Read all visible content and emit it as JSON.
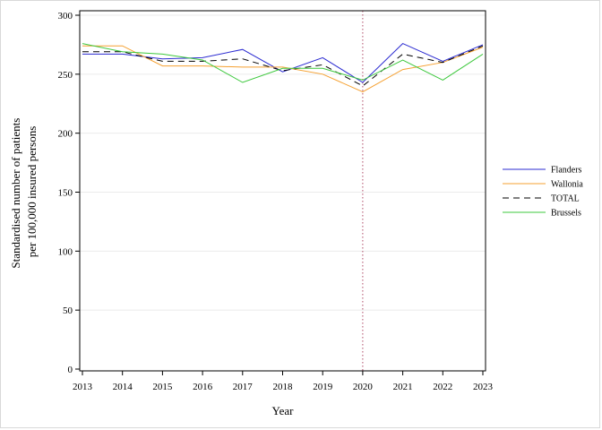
{
  "chart_data": {
    "type": "line",
    "xlabel": "Year",
    "ylabel_lines": [
      "Standardised number of patients",
      "per 100,000 insured persons"
    ],
    "x": [
      2013,
      2014,
      2015,
      2016,
      2017,
      2018,
      2019,
      2020,
      2021,
      2022,
      2023
    ],
    "ylim": [
      0,
      300
    ],
    "yticks": [
      0,
      50,
      100,
      150,
      200,
      250,
      300
    ],
    "grid": "horizontal",
    "reference_line_x": 2020,
    "legend_position": "right",
    "series": [
      {
        "name": "Flanders",
        "color": "#2b2bd1",
        "dash": "solid",
        "values": [
          267,
          267,
          263,
          264,
          271,
          252,
          264,
          243,
          276,
          261,
          275
        ]
      },
      {
        "name": "Wallonia",
        "color": "#f5a030",
        "dash": "solid",
        "values": [
          274,
          274,
          257,
          257,
          256,
          256,
          250,
          235,
          254,
          260,
          273
        ]
      },
      {
        "name": "TOTAL",
        "color": "#000000",
        "dash": "dashed",
        "values": [
          269,
          269,
          261,
          261,
          263,
          253,
          258,
          240,
          267,
          260,
          274
        ]
      },
      {
        "name": "Brussels",
        "color": "#3dc83d",
        "dash": "solid",
        "values": [
          276,
          269,
          267,
          262,
          243,
          255,
          255,
          245,
          262,
          245,
          267
        ]
      }
    ]
  }
}
